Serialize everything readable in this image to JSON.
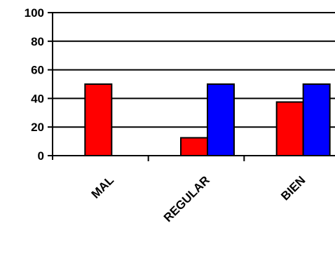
{
  "chart_data": {
    "type": "bar",
    "title": "",
    "xlabel": "",
    "ylabel": "",
    "categories": [
      "MAL",
      "REGULAR",
      "BIEN"
    ],
    "series": [
      {
        "color": "#ff0000",
        "values": [
          50,
          12.5,
          37.5
        ]
      },
      {
        "color": "#0000ff",
        "values": [
          0,
          50,
          50
        ]
      }
    ],
    "ylim": [
      0,
      100
    ],
    "yticks": [
      0,
      20,
      40,
      60,
      80,
      100
    ],
    "grid": true,
    "legend": "none"
  }
}
